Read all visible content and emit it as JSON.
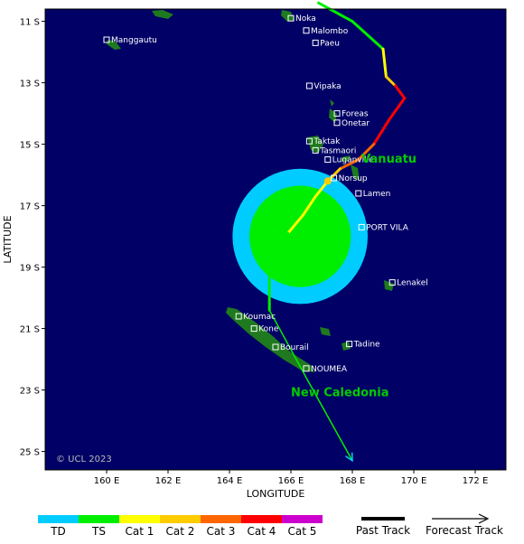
{
  "map": {
    "xlabel": "LONGITUDE",
    "ylabel": "LATITUDE",
    "lon_range": [
      158.0,
      173.0
    ],
    "lat_range": [
      -10.6,
      -25.6
    ],
    "lon_ticks": [
      {
        "v": 160,
        "label": "160 E"
      },
      {
        "v": 162,
        "label": "162 E"
      },
      {
        "v": 164,
        "label": "164 E"
      },
      {
        "v": 166,
        "label": "166 E"
      },
      {
        "v": 168,
        "label": "168 E"
      },
      {
        "v": 170,
        "label": "170 E"
      },
      {
        "v": 172,
        "label": "172 E"
      }
    ],
    "lat_ticks": [
      {
        "v": -11,
        "label": "11 S"
      },
      {
        "v": -13,
        "label": "13 S"
      },
      {
        "v": -15,
        "label": "15 S"
      },
      {
        "v": -17,
        "label": "17 S"
      },
      {
        "v": -19,
        "label": "19 S"
      },
      {
        "v": -21,
        "label": "21 S"
      },
      {
        "v": -23,
        "label": "23 S"
      },
      {
        "v": -25,
        "label": "25 S"
      }
    ],
    "copyright": "© UCL 2023",
    "colors": {
      "ocean": "#000066",
      "land": "#1f7a1f",
      "td": "#00ccff",
      "ts": "#00ee00",
      "cat1": "#ffff00",
      "cat2": "#ffcc00",
      "cat3": "#ff6600",
      "cat4": "#ff0000",
      "cat5": "#cc00cc",
      "label": "#ffffff",
      "region": "#00cc00"
    }
  },
  "places": [
    {
      "name": "Noka",
      "lon": 166.0,
      "lat": -10.9
    },
    {
      "name": "Malombo",
      "lon": 166.5,
      "lat": -11.3
    },
    {
      "name": "Paeu",
      "lon": 166.8,
      "lat": -11.7
    },
    {
      "name": "Manggautu",
      "lon": 160.0,
      "lat": -11.6
    },
    {
      "name": "Vipaka",
      "lon": 166.6,
      "lat": -13.1
    },
    {
      "name": "Foreas",
      "lon": 167.5,
      "lat": -14.0
    },
    {
      "name": "Onetar",
      "lon": 167.5,
      "lat": -14.3
    },
    {
      "name": "Taktak",
      "lon": 166.6,
      "lat": -14.9
    },
    {
      "name": "Tasmaori",
      "lon": 166.8,
      "lat": -15.2
    },
    {
      "name": "Luganville",
      "lon": 167.2,
      "lat": -15.5
    },
    {
      "name": "Norsup",
      "lon": 167.4,
      "lat": -16.1
    },
    {
      "name": "Lamen",
      "lon": 168.2,
      "lat": -16.6
    },
    {
      "name": "PORT VILA",
      "lon": 168.3,
      "lat": -17.7
    },
    {
      "name": "Lenakel",
      "lon": 169.3,
      "lat": -19.5
    },
    {
      "name": "Koumac",
      "lon": 164.3,
      "lat": -20.6
    },
    {
      "name": "Kone",
      "lon": 164.8,
      "lat": -21.0
    },
    {
      "name": "Bourail",
      "lon": 165.5,
      "lat": -21.6
    },
    {
      "name": "Tadine",
      "lon": 167.9,
      "lat": -21.5
    },
    {
      "name": "NOUMEA",
      "lon": 166.5,
      "lat": -22.3
    }
  ],
  "regions": [
    {
      "name": "Vanuatu",
      "lon": 168.3,
      "lat": -15.6
    },
    {
      "name": "New Caledonia",
      "lon": 166.0,
      "lat": -23.2
    }
  ],
  "wind_field": {
    "center_lon": 166.3,
    "center_lat": -18.0,
    "td_radius_deg": 2.2,
    "ts_radius_deg": 1.65
  },
  "past_track": [
    {
      "lon": 166.9,
      "lat": -10.4,
      "cat": "TS"
    },
    {
      "lon": 168.0,
      "lat": -11.0,
      "cat": "TS"
    },
    {
      "lon": 169.0,
      "lat": -11.9,
      "cat": "TS"
    },
    {
      "lon": 169.1,
      "lat": -12.8,
      "cat": "Cat 1"
    },
    {
      "lon": 169.4,
      "lat": -13.1,
      "cat": "Cat 2"
    },
    {
      "lon": 169.7,
      "lat": -13.5,
      "cat": "Cat 4"
    },
    {
      "lon": 169.2,
      "lat": -14.2,
      "cat": "Cat 4"
    },
    {
      "lon": 168.7,
      "lat": -15.0,
      "cat": "Cat 4"
    },
    {
      "lon": 168.2,
      "lat": -15.5,
      "cat": "Cat 3"
    },
    {
      "lon": 167.6,
      "lat": -15.8,
      "cat": "Cat 3"
    },
    {
      "lon": 167.2,
      "lat": -16.2,
      "cat": "Cat 2"
    },
    {
      "lon": 166.8,
      "lat": -16.7,
      "cat": "Cat 1"
    },
    {
      "lon": 166.4,
      "lat": -17.3,
      "cat": "Cat 1"
    },
    {
      "lon": 165.9,
      "lat": -17.9,
      "cat": "Cat 1"
    },
    {
      "lon": 165.3,
      "lat": -19.0,
      "cat": "TS"
    },
    {
      "lon": 165.3,
      "lat": -20.4,
      "cat": "TS"
    }
  ],
  "forecast_track": [
    {
      "lon": 165.3,
      "lat": -20.4
    },
    {
      "lon": 166.5,
      "lat": -22.6
    },
    {
      "lon": 168.0,
      "lat": -25.3
    }
  ],
  "legend": {
    "categories": [
      {
        "label": "TD",
        "color": "#00ccff"
      },
      {
        "label": "TS",
        "color": "#00ee00"
      },
      {
        "label": "Cat 1",
        "color": "#ffff00"
      },
      {
        "label": "Cat 2",
        "color": "#ffcc00"
      },
      {
        "label": "Cat 3",
        "color": "#ff6600"
      },
      {
        "label": "Cat 4",
        "color": "#ff0000"
      },
      {
        "label": "Cat 5",
        "color": "#cc00cc"
      }
    ],
    "past_track_label": "Past Track",
    "forecast_track_label": "Forecast Track"
  }
}
